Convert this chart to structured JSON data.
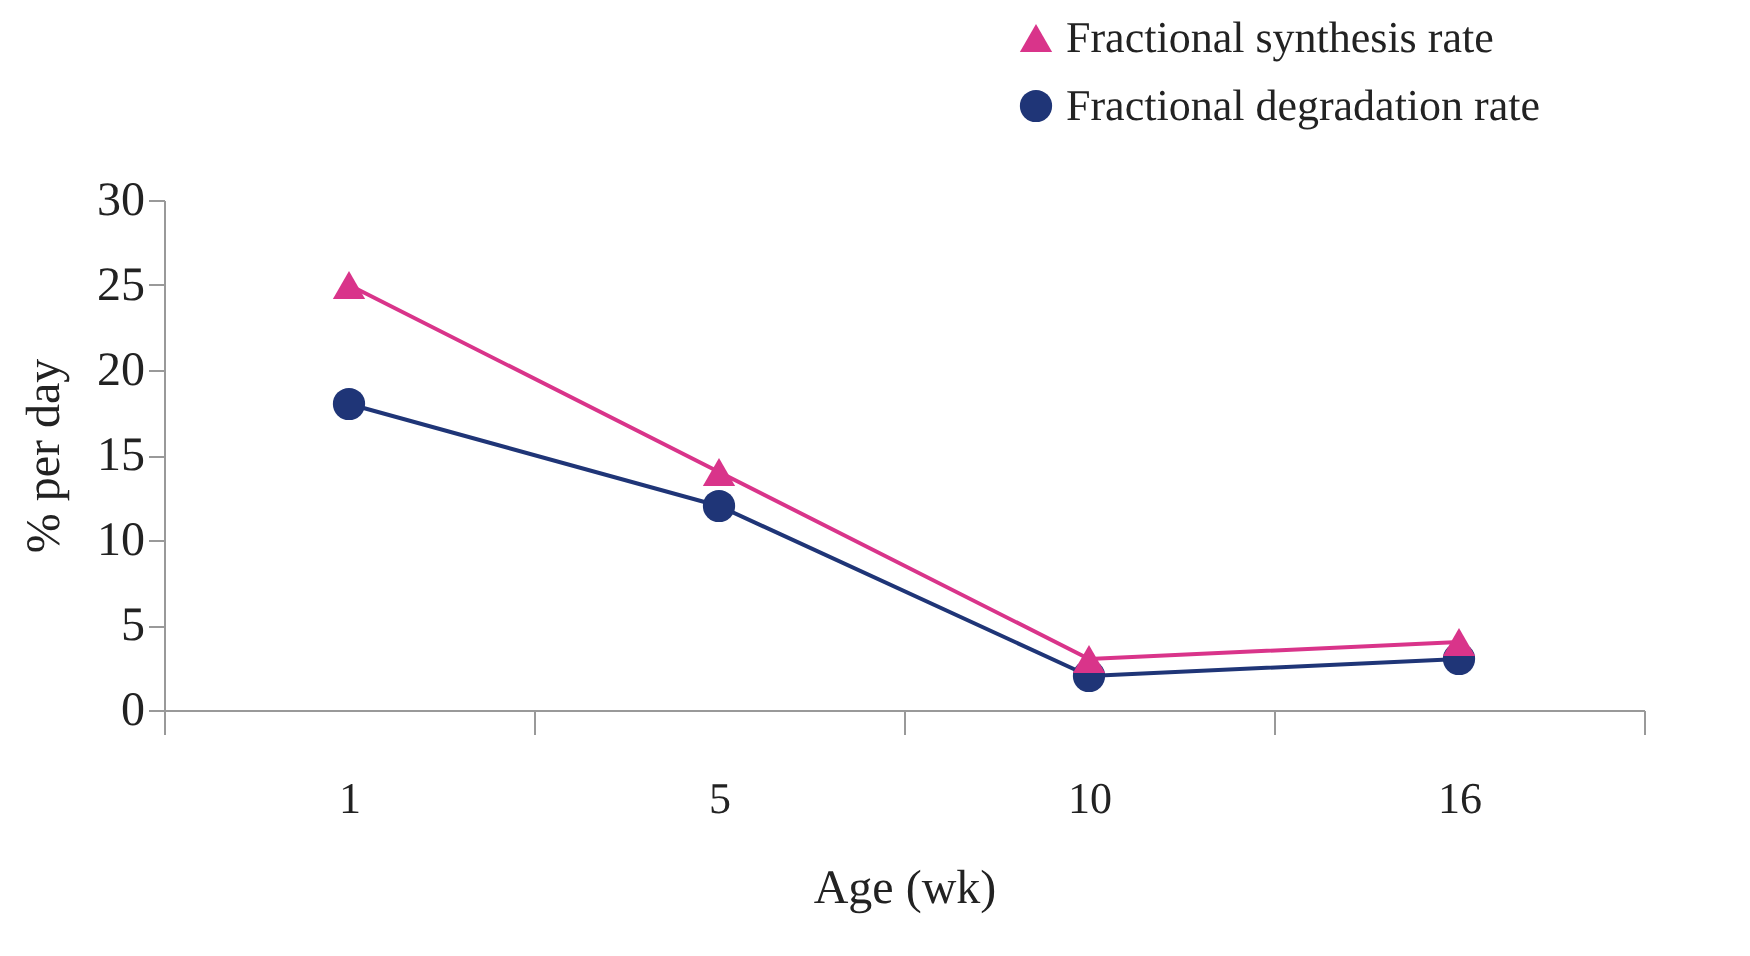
{
  "chart_data": {
    "type": "line",
    "xlabel": "Age (wk)",
    "ylabel": "% per day",
    "categories": [
      "1",
      "5",
      "10",
      "16"
    ],
    "series": [
      {
        "name": "Fractional synthesis rate",
        "color": "#d9348a",
        "marker": "triangle",
        "values": [
          25,
          14,
          3,
          4
        ]
      },
      {
        "name": "Fractional degradation rate",
        "color": "#1f3577",
        "marker": "circle",
        "values": [
          18,
          12,
          2,
          3
        ]
      }
    ],
    "ylim": [
      0,
      30
    ],
    "yticks": [
      0,
      5,
      10,
      15,
      20,
      25,
      30
    ],
    "grid": false,
    "legend": "top right"
  }
}
